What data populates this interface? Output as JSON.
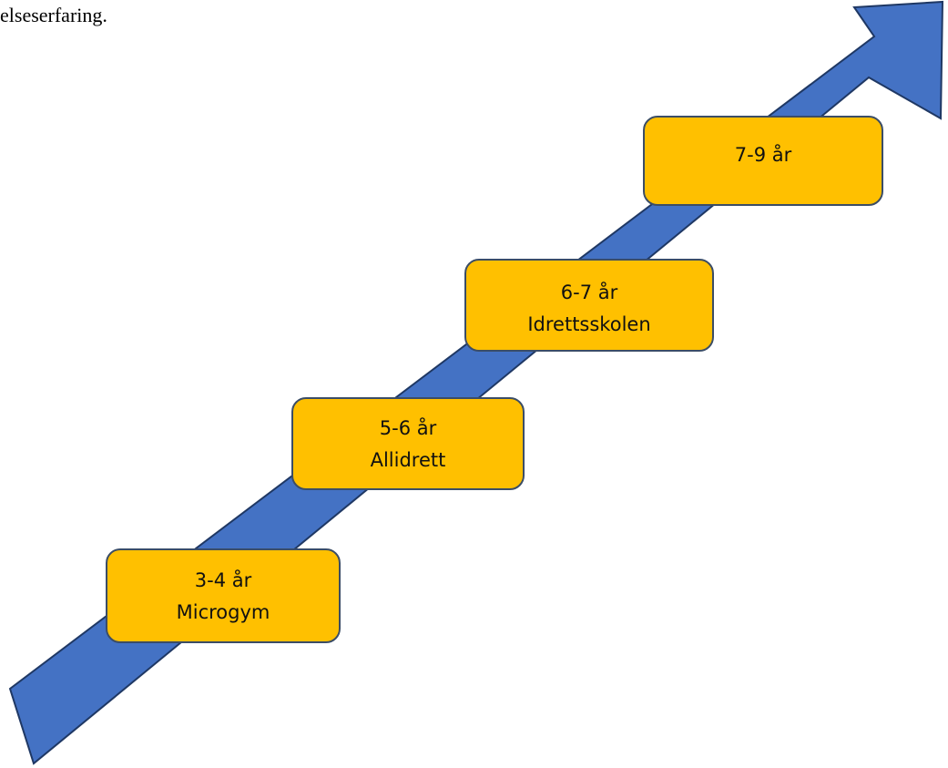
{
  "top_text": "elseserfaring.",
  "colors": {
    "arrow_fill": "#4472c4",
    "arrow_stroke": "#1f3864",
    "box_fill": "#ffc000",
    "box_stroke": "#3b4d66"
  },
  "stages": [
    {
      "age": "3-4 år",
      "name": "Microgym"
    },
    {
      "age": "5-6 år",
      "name": "Allidrett"
    },
    {
      "age": "6-7 år",
      "name": "Idrettsskolen"
    },
    {
      "age": "7-9 år",
      "name": ""
    }
  ]
}
